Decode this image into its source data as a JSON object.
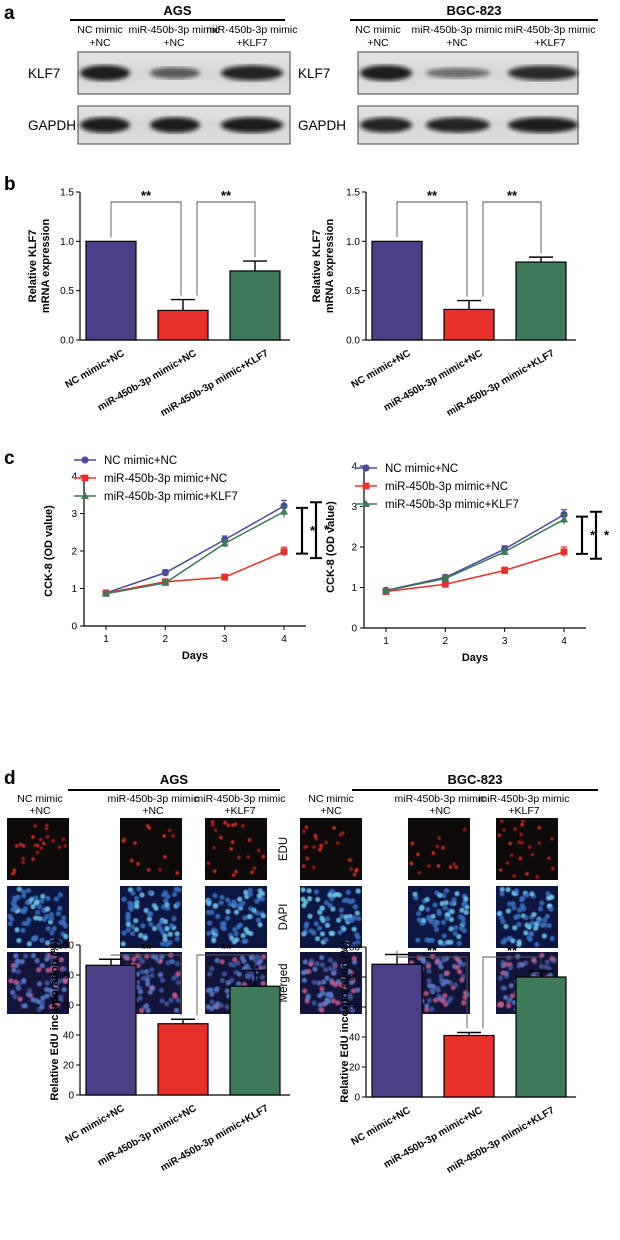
{
  "panel_labels": [
    "a",
    "b",
    "c",
    "d"
  ],
  "conditions": {
    "c1": [
      "NC mimic",
      "+NC"
    ],
    "c2": [
      "miR-450b-3p mimic",
      "+NC"
    ],
    "c3": [
      "miR-450b-3p mimic",
      "+KLF7"
    ]
  },
  "panel_a": {
    "blocks": [
      {
        "title": "AGS",
        "rows": [
          "KLF7",
          "GAPDH"
        ],
        "intensity": {
          "KLF7": [
            0.95,
            0.45,
            0.9
          ],
          "GAPDH": [
            0.95,
            0.95,
            0.95
          ]
        }
      },
      {
        "title": "BGC-823",
        "rows": [
          "KLF7",
          "GAPDH"
        ],
        "intensity": {
          "KLF7": [
            0.95,
            0.3,
            0.85
          ],
          "GAPDH": [
            0.9,
            0.9,
            0.95
          ]
        }
      }
    ]
  },
  "panel_d": {
    "blocks": [
      {
        "title": "AGS"
      },
      {
        "title": "BGC-823"
      }
    ],
    "rows": [
      "EDU",
      "DAPI",
      "Merged"
    ]
  },
  "chart_data": [
    {
      "type": "bar",
      "id": "b-left",
      "categories": [
        "NC mimic+NC",
        "miR-450b-3p mimic+NC",
        "miR-450b-3p mimic+KLF7"
      ],
      "values": [
        1.0,
        0.3,
        0.7
      ],
      "errors": [
        0.0,
        0.11,
        0.1
      ],
      "colors": [
        "#4b3f86",
        "#e8302a",
        "#3e7a5a"
      ],
      "ylabel": [
        "Relative KLF7",
        "mRNA expression"
      ],
      "ylim": [
        0,
        1.5
      ],
      "yticks": [
        "0.0",
        "0.5",
        "1.0",
        "1.5"
      ],
      "significance": [
        "**",
        "**"
      ]
    },
    {
      "type": "bar",
      "id": "b-right",
      "categories": [
        "NC mimic+NC",
        "miR-450b-3p mimic+NC",
        "miR-450b-3p mimic+KLF7"
      ],
      "values": [
        1.0,
        0.31,
        0.79
      ],
      "errors": [
        0.0,
        0.09,
        0.05
      ],
      "colors": [
        "#4b3f86",
        "#e8302a",
        "#3e7a5a"
      ],
      "ylabel": [
        "Relative KLF7",
        "mRNA expression"
      ],
      "ylim": [
        0,
        1.5
      ],
      "yticks": [
        "0.0",
        "0.5",
        "1.0",
        "1.5"
      ],
      "significance": [
        "**",
        "**"
      ]
    },
    {
      "type": "line",
      "id": "c-left",
      "x": [
        1,
        2,
        3,
        4
      ],
      "xticks": [
        "1",
        "2",
        "3",
        "4"
      ],
      "series": [
        {
          "name": "NC mimic+NC",
          "color": "#4b4a9a",
          "marker": "circle",
          "values": [
            0.88,
            1.42,
            2.3,
            3.2
          ],
          "errors": [
            0.05,
            0.08,
            0.1,
            0.15
          ]
        },
        {
          "name": "miR-450b-3p mimic+NC",
          "color": "#e8302a",
          "marker": "square",
          "values": [
            0.88,
            1.18,
            1.3,
            1.98
          ],
          "errors": [
            0.05,
            0.06,
            0.08,
            0.12
          ]
        },
        {
          "name": "miR-450b-3p mimic+KLF7",
          "color": "#3e7a5a",
          "marker": "triangle",
          "values": [
            0.86,
            1.15,
            2.2,
            3.05
          ],
          "errors": [
            0.05,
            0.06,
            0.1,
            0.15
          ]
        }
      ],
      "xlabel": "Days",
      "ylabel": "CCK-8 (OD value)",
      "ylim": [
        0,
        4
      ],
      "yticks": [
        "0",
        "1",
        "2",
        "3",
        "4"
      ],
      "significance": [
        "*",
        "*"
      ]
    },
    {
      "type": "line",
      "id": "c-right",
      "x": [
        1,
        2,
        3,
        4
      ],
      "xticks": [
        "1",
        "2",
        "3",
        "4"
      ],
      "series": [
        {
          "name": "NC mimic+NC",
          "color": "#4b4a9a",
          "marker": "circle",
          "values": [
            0.93,
            1.25,
            1.95,
            2.8
          ],
          "errors": [
            0.04,
            0.06,
            0.08,
            0.12
          ]
        },
        {
          "name": "miR-450b-3p mimic+NC",
          "color": "#e8302a",
          "marker": "square",
          "values": [
            0.9,
            1.08,
            1.42,
            1.88
          ],
          "errors": [
            0.04,
            0.06,
            0.08,
            0.12
          ]
        },
        {
          "name": "miR-450b-3p mimic+KLF7",
          "color": "#3e7a5a",
          "marker": "triangle",
          "values": [
            0.92,
            1.22,
            1.88,
            2.68
          ],
          "errors": [
            0.04,
            0.06,
            0.08,
            0.12
          ]
        }
      ],
      "xlabel": "Days",
      "ylabel": "CCK-8 (OD value)",
      "ylim": [
        0,
        4
      ],
      "yticks": [
        "0",
        "1",
        "2",
        "3",
        "4"
      ],
      "significance": [
        "*",
        "*"
      ]
    },
    {
      "type": "bar",
      "id": "d-left",
      "categories": [
        "NC mimic+NC",
        "miR-450b-3p mimic+NC",
        "miR-450b-3p mimic+KLF7"
      ],
      "values": [
        86.5,
        47.5,
        72.5
      ],
      "errors": [
        4,
        3,
        10.5
      ],
      "colors": [
        "#4b3f86",
        "#e8302a",
        "#3e7a5a"
      ],
      "ylabel": [
        "Relative EdU incorporation (%)"
      ],
      "ylim": [
        0,
        100
      ],
      "yticks": [
        "0",
        "20",
        "40",
        "60",
        "80",
        "100"
      ],
      "significance": [
        "**",
        "**"
      ]
    },
    {
      "type": "bar",
      "id": "d-right",
      "categories": [
        "NC mimic+NC",
        "miR-450b-3p mimic+NC",
        "miR-450b-3p mimic+KLF7"
      ],
      "values": [
        88.5,
        41,
        80
      ],
      "errors": [
        6.5,
        2,
        4
      ],
      "colors": [
        "#4b3f86",
        "#e8302a",
        "#3e7a5a"
      ],
      "ylabel": [
        "Relative EdU incorporation (%)"
      ],
      "ylim": [
        0,
        100
      ],
      "yticks": [
        "0",
        "20",
        "40",
        "60",
        "80",
        "100"
      ],
      "significance": [
        "**",
        "**"
      ]
    }
  ]
}
